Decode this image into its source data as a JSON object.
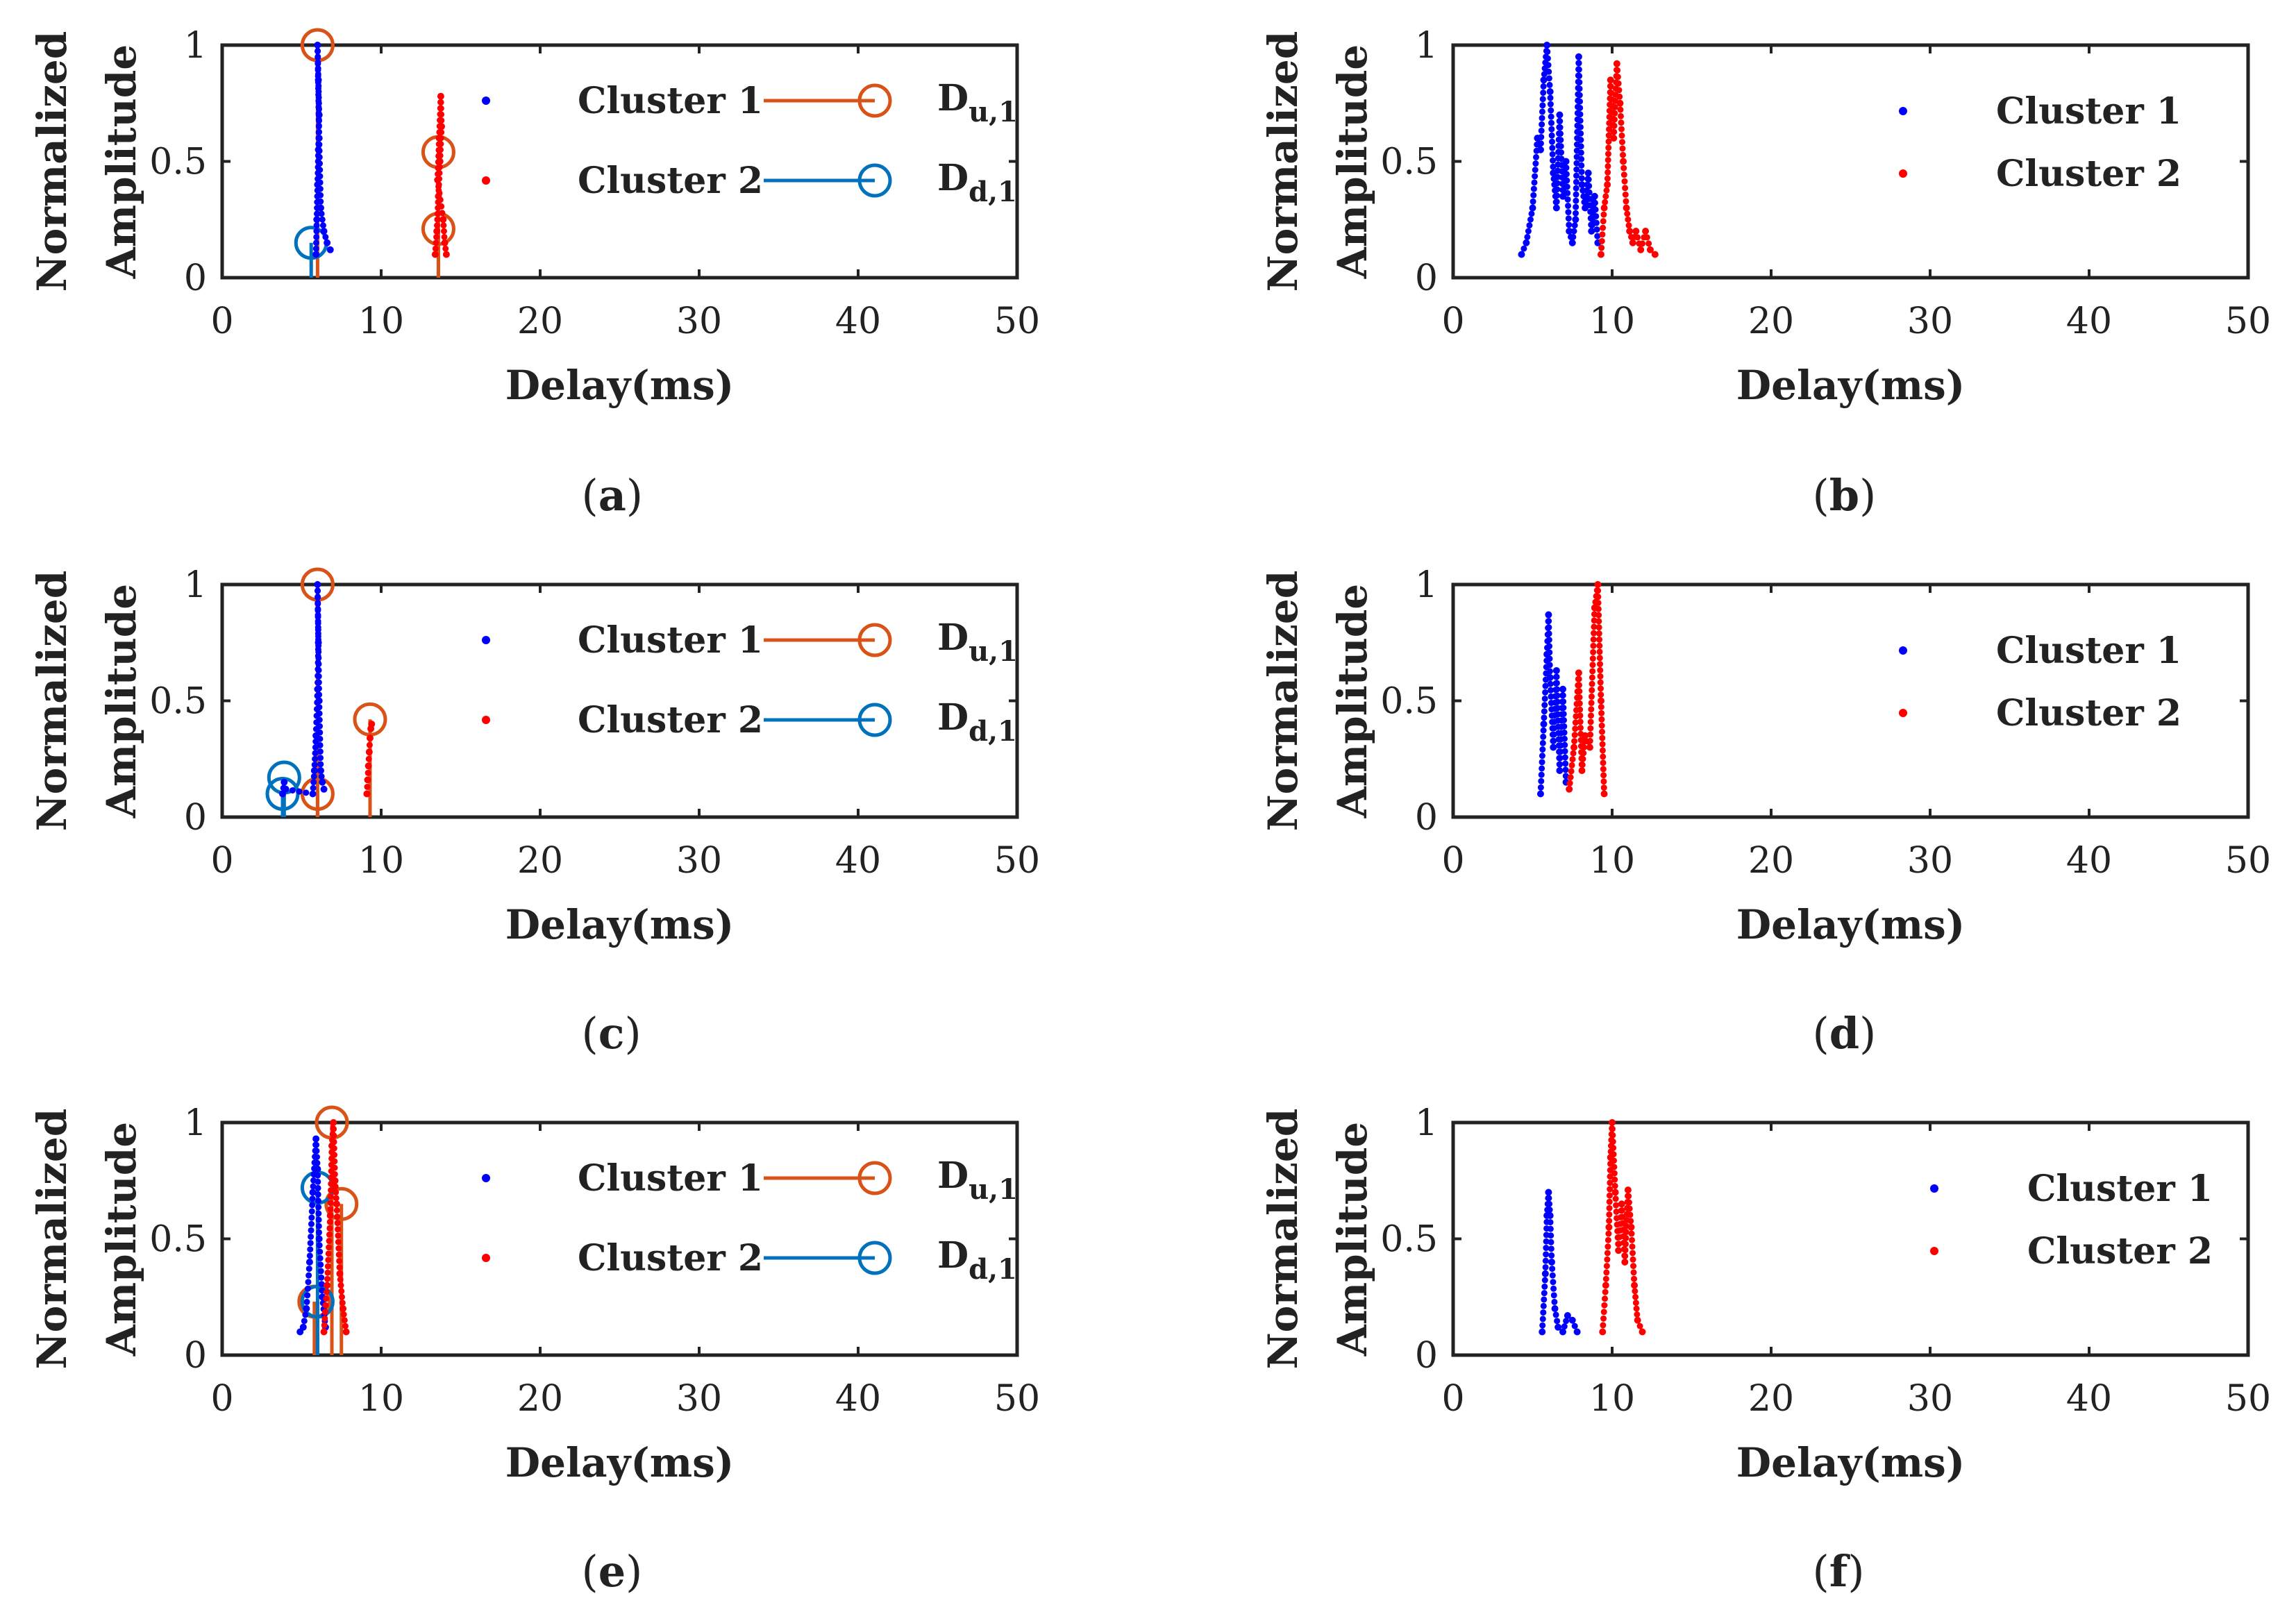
{
  "chart_data": [
    {
      "panel": "a",
      "type": "scatter",
      "xlabel": "Delay(ms)",
      "ylabel_line1": "Normalized",
      "ylabel_line2": "Amplitude",
      "xlim": [
        0,
        50
      ],
      "ylim": [
        0,
        1
      ],
      "xticks": [
        "0",
        "10",
        "20",
        "30",
        "40",
        "50"
      ],
      "yticks": [
        "0",
        "0.5",
        "1"
      ],
      "caption_open": "(",
      "caption_letter": "a",
      "caption_close": ")",
      "colors": {
        "cluster1": "#0000ff",
        "cluster2": "#ff0000",
        "du": "#d95319",
        "dd": "#0072bd"
      },
      "legend": [
        {
          "key": "c1",
          "label": "Cluster 1"
        },
        {
          "key": "c2",
          "label": "Cluster 2"
        },
        {
          "key": "du",
          "base": "D",
          "sub": "u,1"
        },
        {
          "key": "dd",
          "base": "D",
          "sub": "d,1"
        }
      ],
      "series": [
        {
          "name": "Cluster 1",
          "kind": "dots",
          "segments": [
            {
              "x": [
                5.9,
                5.95,
                6.0,
                6.05,
                6.1,
                6.05,
                6.0,
                6.1,
                6.2,
                6.4,
                6.6,
                6.8
              ],
              "y": [
                0.1,
                0.25,
                0.4,
                0.55,
                0.7,
                0.85,
                1.0,
                0.6,
                0.3,
                0.2,
                0.15,
                0.12
              ]
            }
          ]
        },
        {
          "name": "Cluster 2",
          "kind": "dots",
          "segments": [
            {
              "x": [
                13.4,
                13.5,
                13.6,
                13.7,
                13.8,
                13.75,
                13.65,
                13.55,
                13.9,
                14.0,
                14.1
              ],
              "y": [
                0.1,
                0.2,
                0.35,
                0.5,
                0.65,
                0.78,
                0.6,
                0.42,
                0.25,
                0.15,
                0.1
              ]
            }
          ]
        }
      ],
      "stems": [
        {
          "series": "du",
          "points": [
            {
              "x": 6.0,
              "y": 1.0
            },
            {
              "x": 13.6,
              "y": 0.54
            },
            {
              "x": 13.6,
              "y": 0.21
            }
          ]
        },
        {
          "series": "dd",
          "points": [
            {
              "x": 5.6,
              "y": 0.15
            }
          ]
        }
      ]
    },
    {
      "panel": "b",
      "type": "scatter",
      "xlabel": "Delay(ms)",
      "ylabel_line1": "Normalized",
      "ylabel_line2": "Amplitude",
      "xlim": [
        0,
        50
      ],
      "ylim": [
        0,
        1
      ],
      "xticks": [
        "0",
        "10",
        "20",
        "30",
        "40",
        "50"
      ],
      "yticks": [
        "0",
        "0.5",
        "1"
      ],
      "caption_open": "(",
      "caption_letter": "b",
      "caption_close": ")",
      "colors": {
        "cluster1": "#0000ff",
        "cluster2": "#ff0000"
      },
      "legend": [
        {
          "key": "c1",
          "label": "Cluster 1"
        },
        {
          "key": "c2",
          "label": "Cluster 2"
        }
      ],
      "series": [
        {
          "name": "Cluster 1",
          "kind": "dots",
          "segments": [
            {
              "x": [
                4.3,
                4.6,
                5.0,
                5.3,
                5.5,
                5.7,
                5.9,
                6.1,
                6.3,
                6.5,
                6.7,
                6.9,
                7.1,
                7.3,
                7.5,
                7.7,
                7.9,
                8.1,
                8.3,
                8.5,
                8.7,
                8.9,
                9.1
              ],
              "y": [
                0.1,
                0.15,
                0.3,
                0.6,
                0.55,
                0.85,
                1.0,
                0.8,
                0.45,
                0.3,
                0.7,
                0.35,
                0.5,
                0.2,
                0.15,
                0.25,
                0.95,
                0.4,
                0.3,
                0.45,
                0.2,
                0.35,
                0.15
              ]
            }
          ]
        },
        {
          "name": "Cluster 2",
          "kind": "dots",
          "segments": [
            {
              "x": [
                9.3,
                9.5,
                9.7,
                9.9,
                10.1,
                10.3,
                10.5,
                10.7,
                10.9,
                11.1,
                11.3,
                11.5,
                11.8,
                12.1,
                12.4,
                12.7
              ],
              "y": [
                0.1,
                0.3,
                0.4,
                0.85,
                0.6,
                0.92,
                0.75,
                0.5,
                0.3,
                0.2,
                0.15,
                0.2,
                0.12,
                0.2,
                0.12,
                0.1
              ]
            }
          ]
        }
      ]
    },
    {
      "panel": "c",
      "type": "scatter",
      "xlabel": "Delay(ms)",
      "ylabel_line1": "Normalized",
      "ylabel_line2": "Amplitude",
      "xlim": [
        0,
        50
      ],
      "ylim": [
        0,
        1
      ],
      "xticks": [
        "0",
        "10",
        "20",
        "30",
        "40",
        "50"
      ],
      "yticks": [
        "0",
        "0.5",
        "1"
      ],
      "caption_open": "(",
      "caption_letter": "c",
      "caption_close": ")",
      "colors": {
        "cluster1": "#0000ff",
        "cluster2": "#ff0000",
        "du": "#d95319",
        "dd": "#0072bd"
      },
      "legend": [
        {
          "key": "c1",
          "label": "Cluster 1"
        },
        {
          "key": "c2",
          "label": "Cluster 2"
        },
        {
          "key": "du",
          "base": "D",
          "sub": "u,1"
        },
        {
          "key": "dd",
          "base": "D",
          "sub": "d,1"
        }
      ],
      "series": [
        {
          "name": "Cluster 1",
          "kind": "dots",
          "segments": [
            {
              "x": [
                3.8,
                3.9,
                4.0,
                5.7,
                5.8,
                5.9,
                6.0,
                6.05,
                6.0,
                6.1,
                6.2,
                6.3,
                6.4
              ],
              "y": [
                0.1,
                0.15,
                0.12,
                0.1,
                0.2,
                0.35,
                0.55,
                0.75,
                1.0,
                0.5,
                0.2,
                0.15,
                0.12
              ]
            }
          ]
        },
        {
          "name": "Cluster 2",
          "kind": "dots",
          "segments": [
            {
              "x": [
                9.1,
                9.15,
                9.2,
                9.25,
                9.3,
                9.35,
                9.4
              ],
              "y": [
                0.1,
                0.16,
                0.22,
                0.28,
                0.34,
                0.38,
                0.4
              ]
            }
          ]
        }
      ],
      "stems": [
        {
          "series": "du",
          "points": [
            {
              "x": 6.0,
              "y": 1.0
            },
            {
              "x": 9.3,
              "y": 0.42
            },
            {
              "x": 6.0,
              "y": 0.1
            }
          ]
        },
        {
          "series": "dd",
          "points": [
            {
              "x": 3.9,
              "y": 0.17
            },
            {
              "x": 3.8,
              "y": 0.1
            }
          ]
        }
      ]
    },
    {
      "panel": "d",
      "type": "scatter",
      "xlabel": "Delay(ms)",
      "ylabel_line1": "Normalized",
      "ylabel_line2": "Amplitude",
      "xlim": [
        0,
        50
      ],
      "ylim": [
        0,
        1
      ],
      "xticks": [
        "0",
        "10",
        "20",
        "30",
        "40",
        "50"
      ],
      "yticks": [
        "0",
        "0.5",
        "1"
      ],
      "caption_open": "(",
      "caption_letter": "d",
      "caption_close": ")",
      "colors": {
        "cluster1": "#0000ff",
        "cluster2": "#ff0000"
      },
      "legend": [
        {
          "key": "c1",
          "label": "Cluster 1"
        },
        {
          "key": "c2",
          "label": "Cluster 2"
        }
      ],
      "series": [
        {
          "name": "Cluster 1",
          "kind": "dots",
          "segments": [
            {
              "x": [
                5.5,
                5.7,
                5.9,
                6.0,
                6.1,
                6.3,
                6.5,
                6.7,
                6.9,
                7.1
              ],
              "y": [
                0.1,
                0.4,
                0.7,
                0.87,
                0.6,
                0.3,
                0.63,
                0.2,
                0.55,
                0.15
              ]
            }
          ]
        },
        {
          "name": "Cluster 2",
          "kind": "dots",
          "segments": [
            {
              "x": [
                7.3,
                7.6,
                7.9,
                8.1,
                8.3,
                8.6,
                8.9,
                9.1,
                9.3,
                9.5
              ],
              "y": [
                0.12,
                0.3,
                0.62,
                0.2,
                0.35,
                0.3,
                0.9,
                1.0,
                0.5,
                0.1
              ]
            }
          ]
        }
      ]
    },
    {
      "panel": "e",
      "type": "scatter",
      "xlabel": "Delay(ms)",
      "ylabel_line1": "Normalized",
      "ylabel_line2": "Amplitude",
      "xlim": [
        0,
        50
      ],
      "ylim": [
        0,
        1
      ],
      "xticks": [
        "0",
        "10",
        "20",
        "30",
        "40",
        "50"
      ],
      "yticks": [
        "0",
        "0.5",
        "1"
      ],
      "caption_open": "(",
      "caption_letter": "e",
      "caption_close": ")",
      "colors": {
        "cluster1": "#0000ff",
        "cluster2": "#ff0000",
        "du": "#d95319",
        "dd": "#0072bd"
      },
      "legend": [
        {
          "key": "c1",
          "label": "Cluster 1"
        },
        {
          "key": "c2",
          "label": "Cluster 2"
        },
        {
          "key": "du",
          "base": "D",
          "sub": "u,1"
        },
        {
          "key": "dd",
          "base": "D",
          "sub": "d,1"
        }
      ],
      "series": [
        {
          "name": "Cluster 1",
          "kind": "dots",
          "segments": [
            {
              "x": [
                4.9,
                5.1,
                5.3,
                5.5,
                5.7,
                5.9,
                6.0,
                6.1,
                6.3,
                6.5
              ],
              "y": [
                0.1,
                0.12,
                0.2,
                0.4,
                0.7,
                0.93,
                0.8,
                0.5,
                0.25,
                0.12
              ]
            }
          ]
        },
        {
          "name": "Cluster 2",
          "kind": "dots",
          "segments": [
            {
              "x": [
                6.4,
                6.6,
                6.8,
                6.9,
                7.0,
                7.1,
                7.2,
                7.4,
                7.6,
                7.8
              ],
              "y": [
                0.1,
                0.3,
                0.6,
                0.9,
                1.0,
                0.75,
                0.65,
                0.35,
                0.2,
                0.1
              ]
            }
          ]
        }
      ],
      "stems": [
        {
          "series": "du",
          "points": [
            {
              "x": 6.9,
              "y": 1.0
            },
            {
              "x": 7.5,
              "y": 0.65
            },
            {
              "x": 5.8,
              "y": 0.23
            }
          ]
        },
        {
          "series": "dd",
          "points": [
            {
              "x": 6.0,
              "y": 0.72
            },
            {
              "x": 6.0,
              "y": 0.23
            }
          ]
        }
      ]
    },
    {
      "panel": "f",
      "type": "scatter",
      "xlabel": "Delay(ms)",
      "ylabel_line1": "Normalized",
      "ylabel_line2": "Amplitude",
      "xlim": [
        0,
        50
      ],
      "ylim": [
        0,
        1
      ],
      "xticks": [
        "0",
        "10",
        "20",
        "30",
        "40",
        "50"
      ],
      "yticks": [
        "0",
        "0.5",
        "1"
      ],
      "caption_open": "(",
      "caption_letter": "f",
      "caption_close": ")",
      "colors": {
        "cluster1": "#0000ff",
        "cluster2": "#ff0000"
      },
      "legend": [
        {
          "key": "c1",
          "label": "Cluster 1"
        },
        {
          "key": "c2",
          "label": "Cluster 2"
        }
      ],
      "series": [
        {
          "name": "Cluster 1",
          "kind": "dots",
          "segments": [
            {
              "x": [
                5.6,
                5.8,
                5.9,
                6.0,
                6.1,
                6.2,
                6.4,
                6.6,
                6.9,
                7.2,
                7.5,
                7.8
              ],
              "y": [
                0.1,
                0.35,
                0.6,
                0.7,
                0.6,
                0.4,
                0.2,
                0.12,
                0.1,
                0.17,
                0.15,
                0.1
              ]
            }
          ]
        },
        {
          "name": "Cluster 2",
          "kind": "dots",
          "segments": [
            {
              "x": [
                9.4,
                9.6,
                9.8,
                9.9,
                10.0,
                10.2,
                10.4,
                10.6,
                10.8,
                11.0,
                11.2,
                11.4,
                11.6,
                11.9
              ],
              "y": [
                0.1,
                0.3,
                0.55,
                0.85,
                1.0,
                0.7,
                0.45,
                0.65,
                0.4,
                0.71,
                0.55,
                0.3,
                0.15,
                0.1
              ]
            }
          ]
        }
      ]
    }
  ]
}
